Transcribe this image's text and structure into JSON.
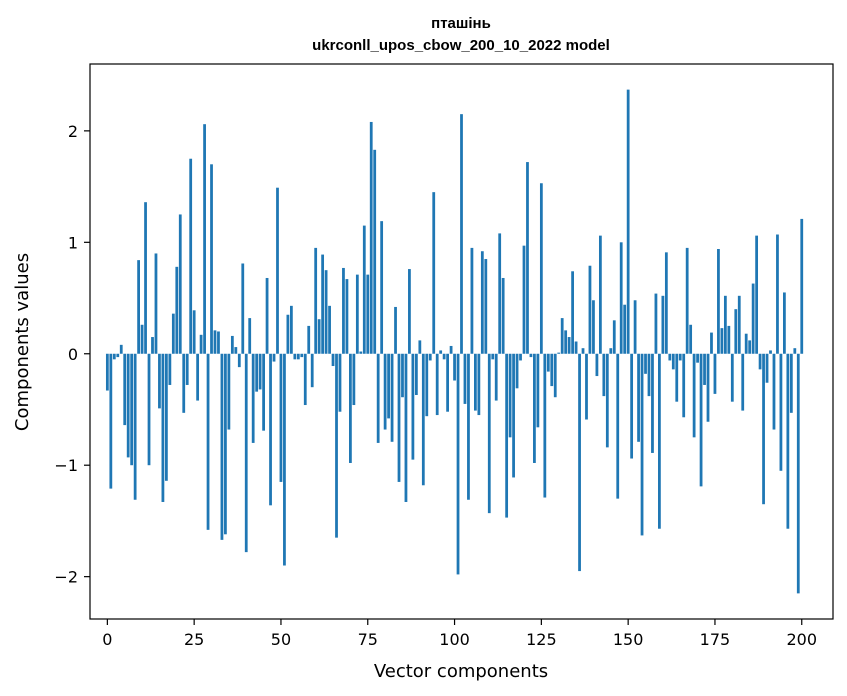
{
  "chart_data": {
    "type": "bar",
    "title_line1": "пташінь",
    "title_line2": "ukrconll_upos_cbow_200_10_2022 model",
    "xlabel": "Vector components",
    "ylabel": "Components values",
    "xlim": [
      -5,
      209
    ],
    "ylim": [
      -2.38,
      2.6
    ],
    "xticks": [
      0,
      25,
      50,
      75,
      100,
      125,
      150,
      175,
      200
    ],
    "yticks": [
      -2,
      -1,
      0,
      1,
      2
    ],
    "ytick_labels": [
      "−2",
      "−1",
      "0",
      "1",
      "2"
    ],
    "grid": false,
    "bar_color": "#1f77b4",
    "values": [
      -0.33,
      -1.21,
      -0.05,
      -0.03,
      0.08,
      -0.64,
      -0.93,
      -1.0,
      -1.31,
      0.84,
      0.26,
      1.36,
      -1.0,
      0.15,
      0.9,
      -0.49,
      -1.33,
      -1.14,
      -0.28,
      0.36,
      0.78,
      1.25,
      -0.53,
      -0.28,
      1.75,
      0.39,
      -0.42,
      0.17,
      2.06,
      -1.58,
      1.7,
      0.21,
      0.2,
      -1.67,
      -1.62,
      -0.68,
      0.16,
      0.06,
      -0.12,
      0.81,
      -1.78,
      0.32,
      -0.8,
      -0.34,
      -0.32,
      -0.69,
      0.68,
      -1.36,
      -0.07,
      1.49,
      -1.15,
      -1.9,
      0.35,
      0.43,
      -0.05,
      -0.05,
      -0.03,
      -0.46,
      0.25,
      -0.3,
      0.95,
      0.31,
      0.89,
      0.75,
      0.43,
      -0.11,
      -1.65,
      -0.52,
      0.77,
      0.67,
      -0.98,
      -0.46,
      0.71,
      0.02,
      1.15,
      0.71,
      2.08,
      1.83,
      -0.8,
      1.19,
      -0.68,
      -0.58,
      -0.79,
      0.42,
      -1.15,
      -0.39,
      -1.33,
      0.76,
      -0.95,
      -0.37,
      0.12,
      -1.18,
      -0.56,
      -0.06,
      1.45,
      -0.55,
      0.03,
      -0.05,
      -0.52,
      0.07,
      -0.24,
      -1.98,
      2.15,
      -0.45,
      -1.31,
      0.95,
      -0.51,
      -0.55,
      0.92,
      0.85,
      -1.43,
      -0.05,
      -0.42,
      1.08,
      0.68,
      -1.47,
      -0.75,
      -1.11,
      -0.31,
      -0.06,
      0.97,
      1.72,
      -0.03,
      -0.98,
      -0.66,
      1.53,
      -1.29,
      -0.16,
      -0.29,
      -0.39,
      0.01,
      0.32,
      0.21,
      0.15,
      0.74,
      0.11,
      -1.95,
      0.05,
      -0.59,
      0.79,
      0.48,
      -0.2,
      1.06,
      -0.38,
      -0.84,
      0.05,
      0.3,
      -1.3,
      1.0,
      0.44,
      2.37,
      -0.94,
      0.48,
      -0.79,
      -1.63,
      -0.18,
      -0.38,
      -0.89,
      0.54,
      -1.57,
      0.52,
      0.91,
      -0.06,
      -0.14,
      -0.43,
      -0.06,
      -0.57,
      0.95,
      0.26,
      -0.75,
      -0.08,
      -1.19,
      -0.28,
      -0.61,
      0.19,
      -0.36,
      0.94,
      0.23,
      0.52,
      0.25,
      -0.43,
      0.4,
      0.52,
      -0.51,
      0.18,
      0.12,
      0.63,
      1.06,
      -0.14,
      -1.35,
      -0.26,
      0.03,
      -0.68,
      1.07,
      -1.05,
      0.55,
      -1.57,
      -0.53,
      0.05,
      -2.15,
      1.21
    ]
  }
}
